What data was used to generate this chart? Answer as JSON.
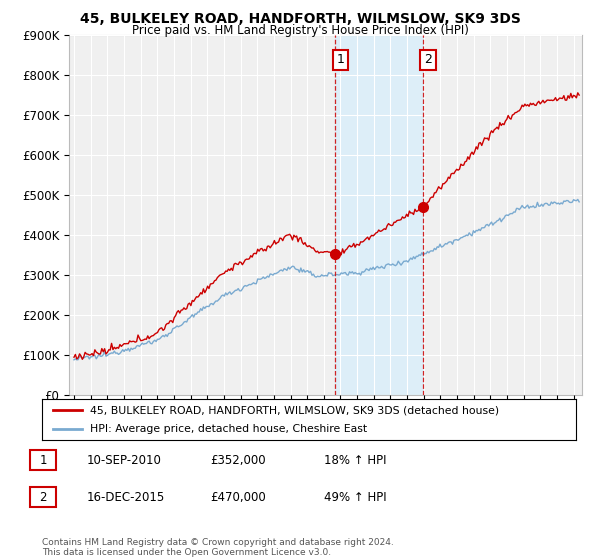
{
  "title": "45, BULKELEY ROAD, HANDFORTH, WILMSLOW, SK9 3DS",
  "subtitle": "Price paid vs. HM Land Registry's House Price Index (HPI)",
  "ylabel_ticks": [
    "£0",
    "£100K",
    "£200K",
    "£300K",
    "£400K",
    "£500K",
    "£600K",
    "£700K",
    "£800K",
    "£900K"
  ],
  "ytick_vals": [
    0,
    100000,
    200000,
    300000,
    400000,
    500000,
    600000,
    700000,
    800000,
    900000
  ],
  "ylim": [
    0,
    900000
  ],
  "xlim_start": 1994.7,
  "xlim_end": 2025.5,
  "red_color": "#cc0000",
  "blue_color": "#7aaad0",
  "blue_fill": "#ddeef8",
  "marker1_x": 2010.7,
  "marker1_y": 352000,
  "marker1_label": "1",
  "marker2_x": 2015.96,
  "marker2_y": 470000,
  "marker2_label": "2",
  "vline1_x": 2010.7,
  "vline2_x": 2015.96,
  "legend_line1": "45, BULKELEY ROAD, HANDFORTH, WILMSLOW, SK9 3DS (detached house)",
  "legend_line2": "HPI: Average price, detached house, Cheshire East",
  "annot1_num": "1",
  "annot1_date": "10-SEP-2010",
  "annot1_price": "£352,000",
  "annot1_hpi": "18% ↑ HPI",
  "annot2_num": "2",
  "annot2_date": "16-DEC-2015",
  "annot2_price": "£470,000",
  "annot2_hpi": "49% ↑ HPI",
  "footer": "Contains HM Land Registry data © Crown copyright and database right 2024.\nThis data is licensed under the Open Government Licence v3.0.",
  "background_color": "#ffffff",
  "plot_bg_color": "#f0f0f0"
}
